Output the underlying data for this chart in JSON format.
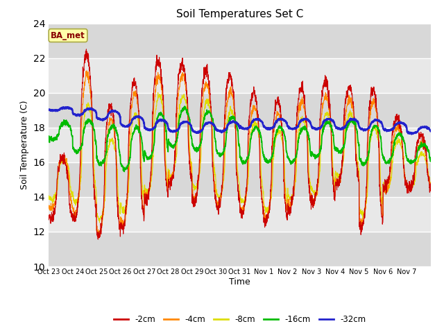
{
  "title": "Soil Temperatures Set C",
  "xlabel": "Time",
  "ylabel": "Soil Temperature (C)",
  "ylim": [
    10,
    24
  ],
  "yticks": [
    10,
    12,
    14,
    16,
    18,
    20,
    22,
    24
  ],
  "annotation": "BA_met",
  "legend_labels": [
    "-2cm",
    "-4cm",
    "-8cm",
    "-16cm",
    "-32cm"
  ],
  "colors": [
    "#cc0000",
    "#ff8800",
    "#dddd00",
    "#00bb00",
    "#2222cc"
  ],
  "band_colors": [
    "#d8d8d8",
    "#e8e8e8"
  ],
  "xtick_labels": [
    "Oct 23",
    "Oct 24",
    "Oct 25",
    "Oct 26",
    "Oct 27",
    "Oct 28",
    "Oct 29",
    "Oct 30",
    "Oct 31",
    "Nov 1",
    "Nov 2",
    "Nov 3",
    "Nov 4",
    "Nov 5",
    "Nov 6",
    "Nov 7"
  ],
  "n_days": 16
}
